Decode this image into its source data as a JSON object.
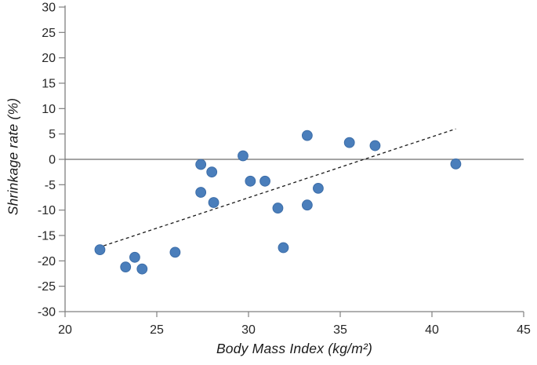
{
  "chart_data": {
    "type": "scatter",
    "title": "",
    "xlabel": "Body Mass Index (kg/m²)",
    "ylabel": "Shrinkage rate (%)",
    "xlim": [
      20,
      45
    ],
    "ylim": [
      -30,
      30
    ],
    "x_ticks": [
      20,
      25,
      30,
      35,
      40,
      45
    ],
    "y_ticks": [
      30,
      25,
      20,
      15,
      10,
      5,
      0,
      -5,
      -10,
      -15,
      -20,
      -25,
      -30
    ],
    "grid": false,
    "zero_line_y": 0,
    "legend": null,
    "points": [
      [
        21.9,
        -17.8
      ],
      [
        23.3,
        -21.2
      ],
      [
        23.8,
        -19.3
      ],
      [
        24.2,
        -21.6
      ],
      [
        26.0,
        -18.3
      ],
      [
        27.4,
        -1.0
      ],
      [
        27.4,
        -6.5
      ],
      [
        28.0,
        -2.5
      ],
      [
        28.1,
        -8.5
      ],
      [
        29.7,
        0.7
      ],
      [
        30.1,
        -4.3
      ],
      [
        30.9,
        -4.3
      ],
      [
        31.6,
        -9.6
      ],
      [
        31.9,
        -17.4
      ],
      [
        33.2,
        4.7
      ],
      [
        33.2,
        -9.0
      ],
      [
        33.8,
        -5.7
      ],
      [
        35.5,
        3.3
      ],
      [
        36.9,
        2.7
      ],
      [
        41.3,
        -0.9
      ]
    ],
    "trendline": {
      "style": "dashed",
      "x1": 21.8,
      "y1": -17.4,
      "x2": 41.3,
      "y2": 6.0
    },
    "colors": {
      "point_fill": "#4a7ebb",
      "point_edge": "#3c6da8",
      "axis": "#808080",
      "zero_line": "#6e6e6e",
      "trend": "#1a1a1a",
      "tick_text": "#262626"
    }
  }
}
